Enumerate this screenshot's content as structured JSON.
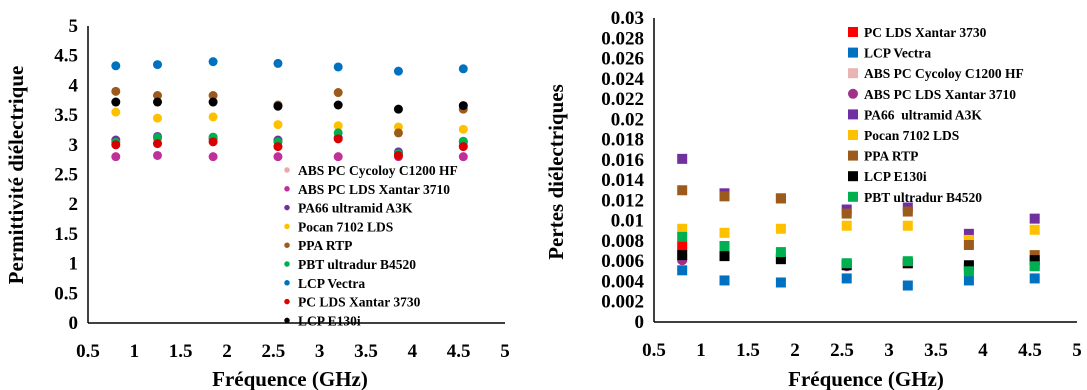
{
  "chart_data": [
    {
      "type": "scatter",
      "xlabel": "Fréquence (GHz)",
      "ylabel": "Permittivité diélectrique",
      "xlim": [
        0.5,
        5
      ],
      "ylim": [
        0,
        5
      ],
      "xticks": [
        "0.5",
        "1",
        "1.5",
        "2",
        "2.5",
        "3",
        "3.5",
        "4",
        "4.5",
        "5"
      ],
      "yticks": [
        "0",
        "0.5",
        "1",
        "1.5",
        "2",
        "2.5",
        "3",
        "3.5",
        "4",
        "4.5",
        "5"
      ],
      "legend_position": "bottom-right",
      "series": [
        {
          "name": "ABS PC Cycoloy C1200 HF",
          "color": "#e8aaa8",
          "marker": "circle",
          "x": [
            0.8,
            1.25,
            1.85,
            2.55,
            3.2,
            3.85,
            4.55
          ],
          "y": [
            3.05,
            3.1,
            3.1,
            3.05,
            3.1,
            2.85,
            3.0
          ]
        },
        {
          "name": "ABS PC LDS Xantar 3710",
          "color": "#c0309a",
          "marker": "circle",
          "x": [
            0.8,
            1.25,
            1.85,
            2.55,
            3.2,
            3.85,
            4.55
          ],
          "y": [
            2.8,
            2.82,
            2.8,
            2.8,
            2.8,
            2.8,
            2.8
          ]
        },
        {
          "name": "PA66 ultramid A3K",
          "color": "#7030a0",
          "marker": "circle",
          "x": [
            0.8,
            1.25,
            1.85,
            2.55,
            3.2,
            3.85,
            4.55
          ],
          "y": [
            3.08,
            3.14,
            3.1,
            3.08,
            3.12,
            2.88,
            3.05
          ]
        },
        {
          "name": "Pocan 7102 LDS",
          "color": "#ffc000",
          "marker": "circle",
          "x": [
            0.8,
            1.25,
            1.85,
            2.55,
            3.2,
            3.85,
            4.55
          ],
          "y": [
            3.55,
            3.45,
            3.47,
            3.34,
            3.32,
            3.3,
            3.26
          ]
        },
        {
          "name": "PPA RTP",
          "color": "#9c5b1c",
          "marker": "circle",
          "x": [
            0.8,
            1.25,
            1.85,
            2.55,
            3.2,
            3.85,
            4.55
          ],
          "y": [
            3.9,
            3.83,
            3.83,
            3.67,
            3.88,
            3.2,
            3.6
          ]
        },
        {
          "name": "PBT ultradur B4520",
          "color": "#00b050",
          "marker": "circle",
          "x": [
            0.8,
            1.25,
            1.85,
            2.55,
            3.2,
            3.85,
            4.55
          ],
          "y": [
            3.04,
            3.12,
            3.13,
            3.05,
            3.2,
            2.85,
            3.06
          ]
        },
        {
          "name": "LCP Vectra",
          "color": "#0070c0",
          "marker": "circle",
          "x": [
            0.8,
            1.25,
            1.85,
            2.55,
            3.2,
            3.85,
            4.55
          ],
          "y": [
            4.33,
            4.35,
            4.4,
            4.37,
            4.31,
            4.24,
            4.28
          ]
        },
        {
          "name": "PC LDS Xantar 3730",
          "color": "#d80000",
          "marker": "circle",
          "x": [
            0.8,
            1.25,
            1.85,
            2.55,
            3.2,
            3.85,
            4.55
          ],
          "y": [
            3.0,
            3.02,
            3.05,
            2.97,
            3.1,
            2.82,
            2.97
          ]
        },
        {
          "name": "LCP E130i",
          "color": "#000000",
          "marker": "circle",
          "x": [
            0.8,
            1.25,
            1.85,
            2.55,
            3.2,
            3.85,
            4.55
          ],
          "y": [
            3.72,
            3.72,
            3.72,
            3.65,
            3.67,
            3.6,
            3.66
          ]
        }
      ]
    },
    {
      "type": "scatter",
      "xlabel": "Fréquence (GHz)",
      "ylabel": "Pertes diélectriques",
      "xlim": [
        0.5,
        5
      ],
      "ylim": [
        0,
        0.03
      ],
      "xticks": [
        "0.5",
        "1",
        "1.5",
        "2",
        "2.5",
        "3",
        "3.5",
        "4",
        "4.5",
        "5"
      ],
      "yticks": [
        "0",
        "0.002",
        "0.004",
        "0.006",
        "0.008",
        "0.01",
        "0.012",
        "0.014",
        "0.016",
        "0.018",
        "0.02",
        "0.022",
        "0.024",
        "0.026",
        "0.028",
        "0.03"
      ],
      "legend_position": "top-right",
      "series": [
        {
          "name": "PC LDS Xantar 3730",
          "color": "#ff0000",
          "marker": "square",
          "x": [
            0.8,
            1.25,
            1.85,
            2.55,
            3.2,
            3.85,
            4.55
          ],
          "y": [
            0.0075,
            0.0068,
            0.0063,
            0.0057,
            0.0058,
            0.0053,
            0.0056
          ]
        },
        {
          "name": "LCP Vectra",
          "color": "#0070c0",
          "marker": "square",
          "x": [
            0.8,
            1.25,
            1.85,
            2.55,
            3.2,
            3.85,
            4.55
          ],
          "y": [
            0.0051,
            0.0041,
            0.0039,
            0.0043,
            0.0036,
            0.0041,
            0.0043
          ]
        },
        {
          "name": "ABS PC Cycoloy C1200 HF",
          "color": "#e8b4b4",
          "marker": "square",
          "x": [
            0.8,
            1.25,
            1.85,
            2.55,
            3.2,
            3.85,
            4.55
          ],
          "y": [
            0.0063,
            0.0066,
            0.0064,
            0.0057,
            0.0058,
            0.0052,
            0.0058
          ]
        },
        {
          "name": "ABS PC LDS Xantar 3710",
          "color": "#a0308a",
          "marker": "circle",
          "x": [
            0.8,
            1.25,
            1.85,
            2.55,
            3.2,
            3.85,
            4.55
          ],
          "y": [
            0.0061,
            0.0066,
            0.0065,
            0.0055,
            0.0058,
            0.0052,
            0.0057
          ]
        },
        {
          "name": "PA66  ultramid A3K",
          "color": "#7030a0",
          "marker": "square",
          "x": [
            0.8,
            1.25,
            1.85,
            2.55,
            3.2,
            3.85,
            4.55
          ],
          "y": [
            0.0161,
            0.0127,
            0.0122,
            0.0111,
            0.0113,
            0.0087,
            0.0102
          ]
        },
        {
          "name": "Pocan 7102 LDS",
          "color": "#ffc000",
          "marker": "square",
          "x": [
            0.8,
            1.25,
            1.85,
            2.55,
            3.2,
            3.85,
            4.55
          ],
          "y": [
            0.0092,
            0.0088,
            0.0092,
            0.0095,
            0.0095,
            0.0081,
            0.0091
          ]
        },
        {
          "name": "PPA RTP",
          "color": "#9c5b1c",
          "marker": "square",
          "x": [
            0.8,
            1.25,
            1.85,
            2.55,
            3.2,
            3.85,
            4.55
          ],
          "y": [
            0.013,
            0.0124,
            0.0122,
            0.0107,
            0.0109,
            0.0076,
            0.0066
          ]
        },
        {
          "name": "LCP E130i",
          "color": "#000000",
          "marker": "square",
          "x": [
            0.8,
            1.25,
            1.85,
            2.55,
            3.2,
            3.85,
            4.55
          ],
          "y": [
            0.0066,
            0.0065,
            0.0062,
            0.0056,
            0.0058,
            0.0056,
            0.0061
          ]
        },
        {
          "name": "PBT ultradur B4520",
          "color": "#00b050",
          "marker": "square",
          "x": [
            0.8,
            1.25,
            1.85,
            2.55,
            3.2,
            3.85,
            4.55
          ],
          "y": [
            0.0084,
            0.0075,
            0.0069,
            0.0058,
            0.006,
            0.005,
            0.0055
          ]
        }
      ]
    }
  ]
}
